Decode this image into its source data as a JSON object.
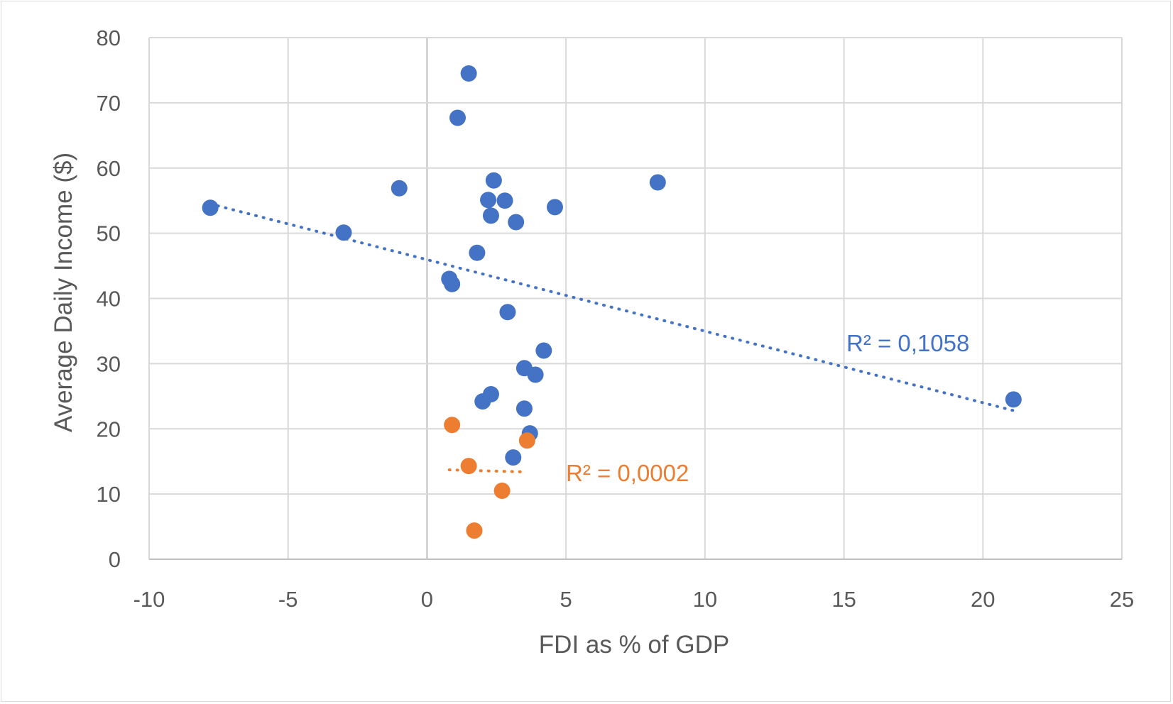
{
  "chart_data": {
    "type": "scatter",
    "title": "",
    "xlabel": "FDI as % of GDP",
    "ylabel": "Average Daily Income ($)",
    "xlim": [
      -10,
      25
    ],
    "ylim": [
      0,
      80
    ],
    "x_ticks": [
      "-10",
      "-5",
      "0",
      "5",
      "10",
      "15",
      "20",
      "25"
    ],
    "y_ticks": [
      "0",
      "10",
      "20",
      "30",
      "40",
      "50",
      "60",
      "70",
      "80"
    ],
    "grid": true,
    "legend": "none",
    "series": [
      {
        "color": "#4472c4",
        "points": [
          {
            "x": 1.5,
            "y": 74.5
          },
          {
            "x": 1.1,
            "y": 67.7
          },
          {
            "x": -1.0,
            "y": 56.9
          },
          {
            "x": -7.8,
            "y": 53.9
          },
          {
            "x": 2.4,
            "y": 58.1
          },
          {
            "x": 8.3,
            "y": 57.8
          },
          {
            "x": 2.2,
            "y": 55.1
          },
          {
            "x": 2.8,
            "y": 55.0
          },
          {
            "x": 4.6,
            "y": 54.0
          },
          {
            "x": 2.3,
            "y": 52.7
          },
          {
            "x": 3.2,
            "y": 51.7
          },
          {
            "x": -3.0,
            "y": 50.1
          },
          {
            "x": 1.8,
            "y": 47.0
          },
          {
            "x": 0.8,
            "y": 43.0
          },
          {
            "x": 0.9,
            "y": 42.2
          },
          {
            "x": 2.9,
            "y": 37.9
          },
          {
            "x": 4.2,
            "y": 32.0
          },
          {
            "x": 3.5,
            "y": 29.3
          },
          {
            "x": 3.9,
            "y": 28.3
          },
          {
            "x": 2.3,
            "y": 25.3
          },
          {
            "x": 2.0,
            "y": 24.2
          },
          {
            "x": 3.5,
            "y": 23.1
          },
          {
            "x": 3.7,
            "y": 19.3
          },
          {
            "x": 3.1,
            "y": 15.6
          },
          {
            "x": 21.1,
            "y": 24.5
          }
        ],
        "trendline": {
          "x": [
            -7.8,
            21.1
          ],
          "y": [
            54.5,
            22.8
          ]
        },
        "r2_label": "R² = 0,1058"
      },
      {
        "color": "#ed7d31",
        "points": [
          {
            "x": 0.9,
            "y": 20.6
          },
          {
            "x": 3.6,
            "y": 18.2
          },
          {
            "x": 1.5,
            "y": 14.3
          },
          {
            "x": 2.7,
            "y": 10.5
          },
          {
            "x": 1.7,
            "y": 4.4
          }
        ],
        "trendline": {
          "x": [
            0.8,
            3.5
          ],
          "y": [
            13.7,
            13.4
          ]
        },
        "r2_label": "R² = 0,0002"
      }
    ]
  }
}
